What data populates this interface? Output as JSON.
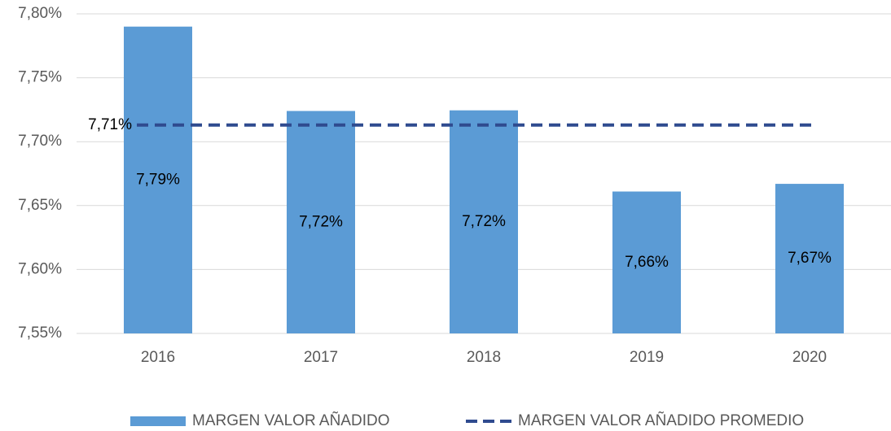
{
  "chart_data": {
    "type": "bar",
    "categories": [
      "2016",
      "2017",
      "2018",
      "2019",
      "2020"
    ],
    "series": [
      {
        "name": "MARGEN VALOR AÑADIDO",
        "color": "#5b9bd5",
        "type": "bar",
        "values": [
          7.79,
          7.724,
          7.7245,
          7.661,
          7.667
        ],
        "value_labels": [
          "7,79%",
          "7,72%",
          "7,72%",
          "7,66%",
          "7,67%"
        ]
      },
      {
        "name": "MARGEN VALOR AÑADIDO PROMEDIO",
        "color": "#2f4b8f",
        "type": "line",
        "dashed": true,
        "values": [
          7.713,
          7.713,
          7.713,
          7.713,
          7.713
        ],
        "value_labels": [
          "7,71%",
          null,
          null,
          null,
          null
        ]
      }
    ],
    "ylim": [
      7.55,
      7.8
    ],
    "yticks": [
      {
        "value": 7.55,
        "label": "7,55%"
      },
      {
        "value": 7.6,
        "label": "7,60%"
      },
      {
        "value": 7.65,
        "label": "7,65%"
      },
      {
        "value": 7.7,
        "label": "7,70%"
      },
      {
        "value": 7.75,
        "label": "7,75%"
      },
      {
        "value": 7.8,
        "label": "7,80%"
      }
    ],
    "grid": true,
    "legend": "bottom"
  }
}
